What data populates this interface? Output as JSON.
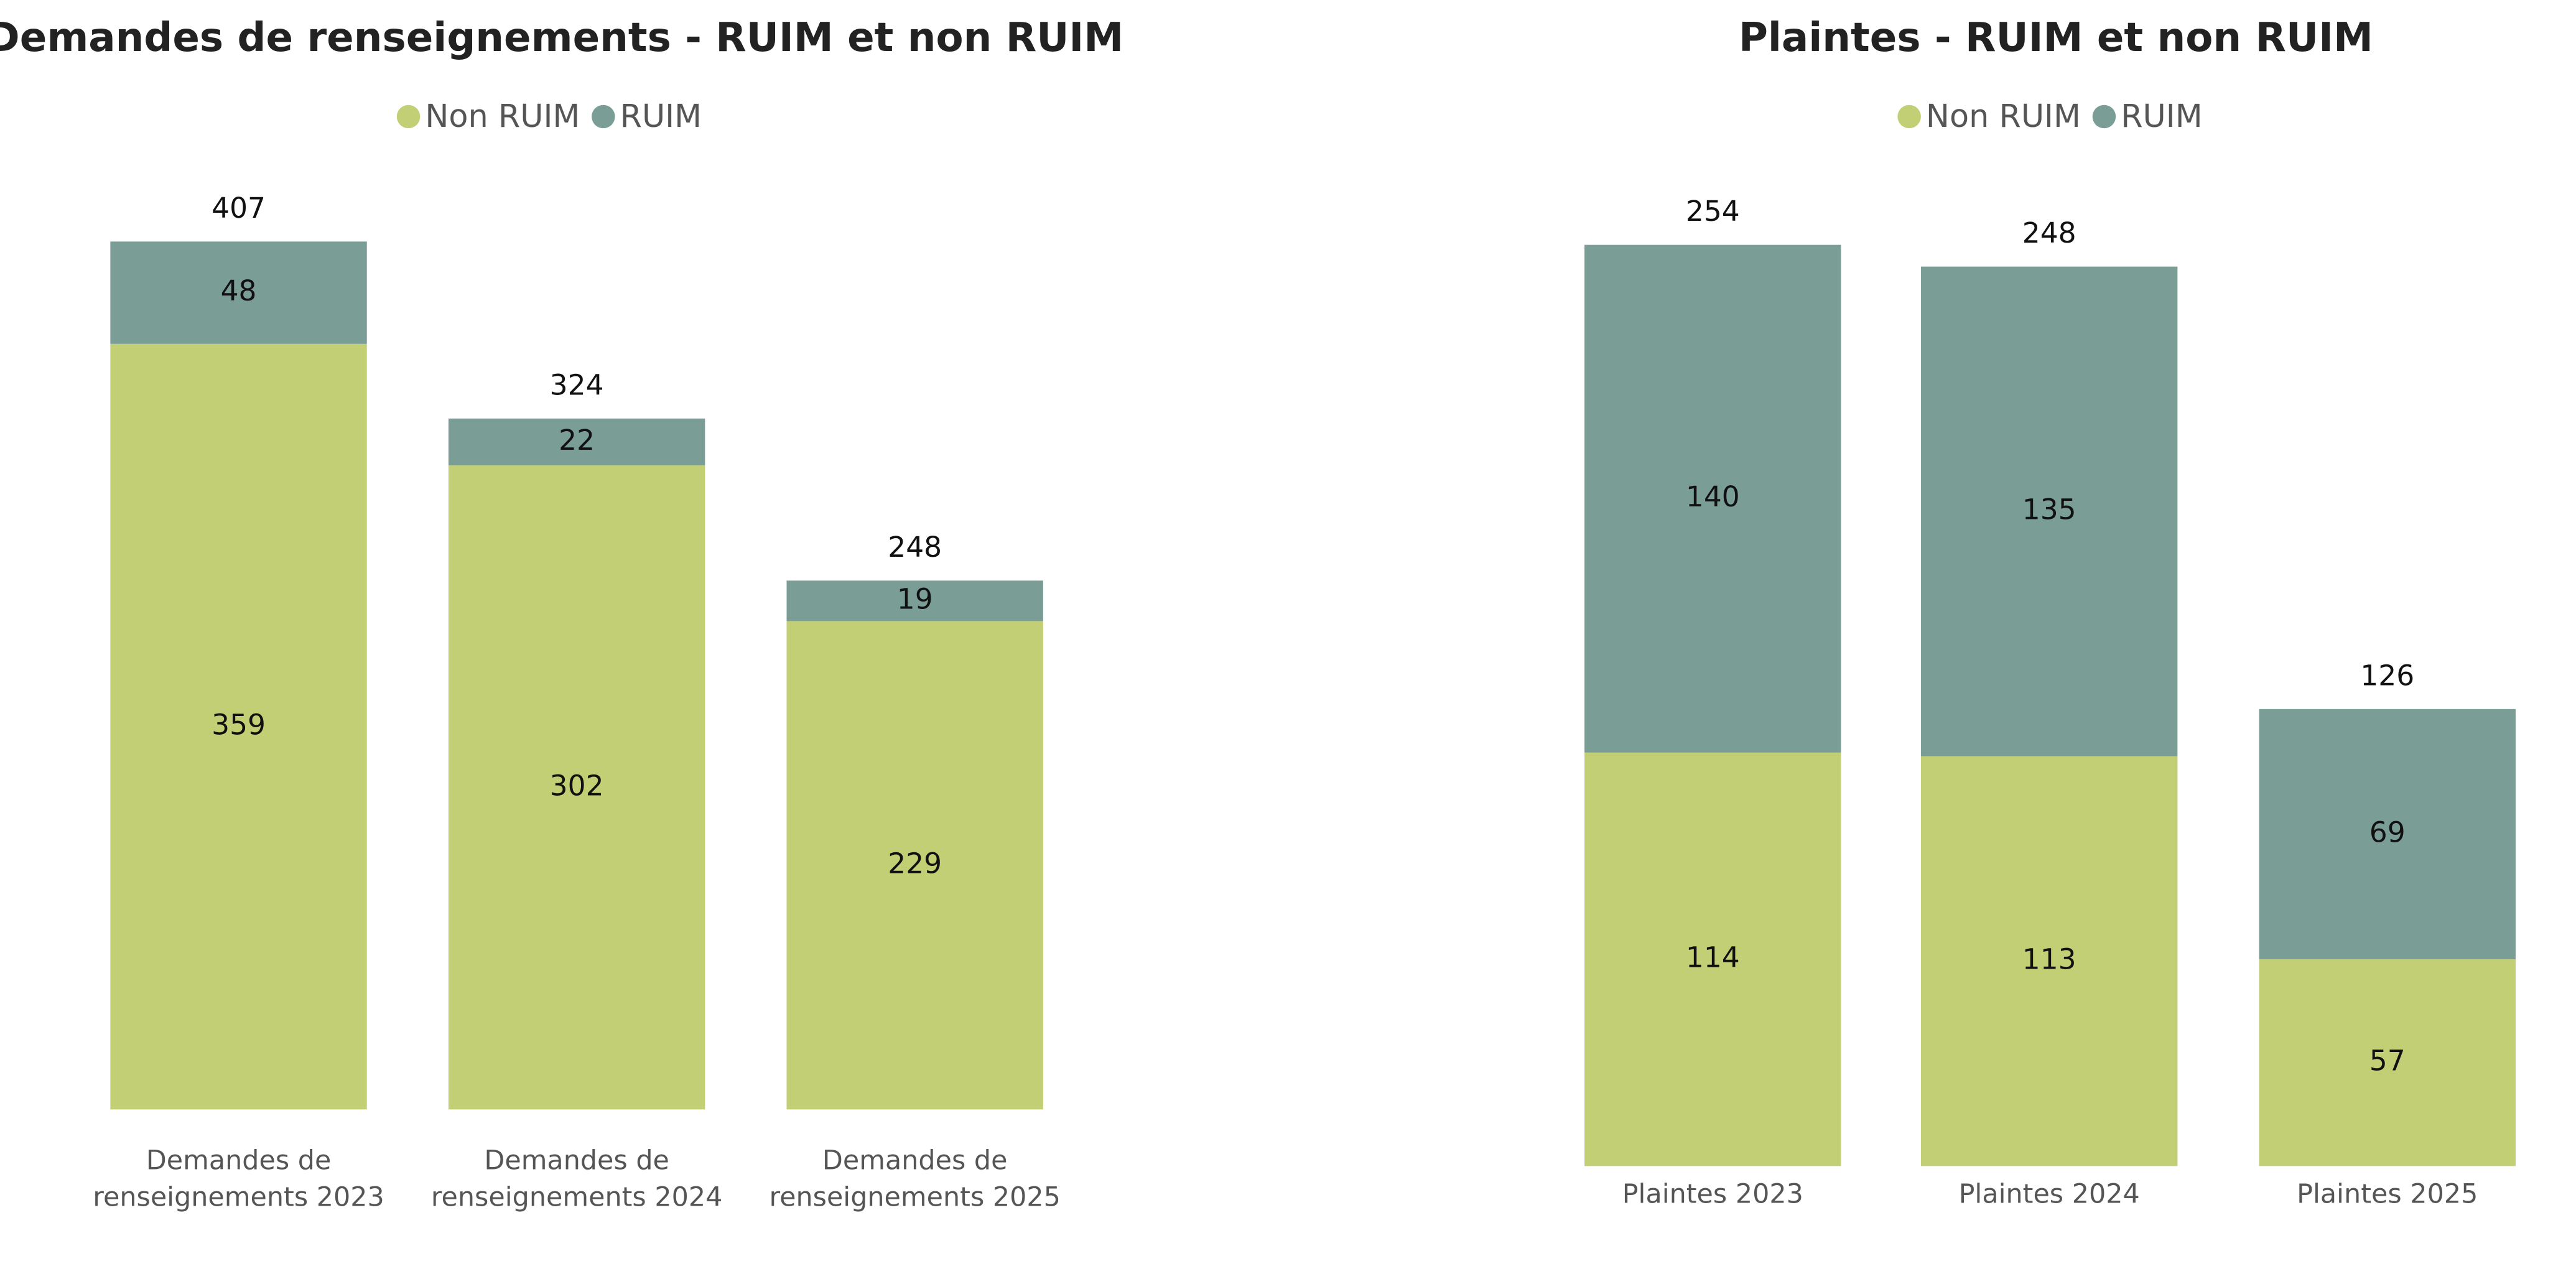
{
  "chart_data": [
    {
      "type": "stacked_bar",
      "title": "Demandes de renseignements - RUIM et non RUIM",
      "categories": [
        "Demandes de renseignements 2023",
        "Demandes de renseignements 2024",
        "Demandes de renseignements 2025"
      ],
      "series": [
        {
          "name": "Non RUIM",
          "color": "#c3cf74",
          "values": [
            359,
            302,
            229
          ]
        },
        {
          "name": "RUIM",
          "color": "#7a9e96",
          "values": [
            48,
            22,
            19
          ]
        }
      ],
      "totals": [
        407,
        324,
        248
      ]
    },
    {
      "type": "stacked_bar",
      "title": "Plaintes - RUIM et non RUIM",
      "categories": [
        "Plaintes 2023",
        "Plaintes 2024",
        "Plaintes 2025"
      ],
      "series": [
        {
          "name": "Non RUIM",
          "color": "#c3cf74",
          "values": [
            114,
            113,
            57
          ]
        },
        {
          "name": "RUIM",
          "color": "#7a9e96",
          "values": [
            140,
            135,
            69
          ]
        }
      ],
      "totals": [
        254,
        248,
        126
      ]
    }
  ]
}
